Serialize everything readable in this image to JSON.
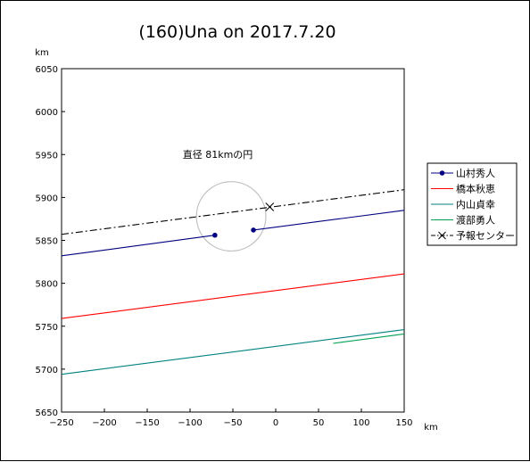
{
  "chart_data": {
    "type": "line",
    "title": "(160)Una on 2017.7.20",
    "xlabel": "km",
    "ylabel": "km",
    "xlim": [
      -250,
      150
    ],
    "ylim": [
      5650,
      6050
    ],
    "xticks": [
      -250,
      -200,
      -150,
      -100,
      -50,
      0,
      50,
      100,
      150
    ],
    "yticks": [
      5650,
      5700,
      5750,
      5800,
      5850,
      5900,
      5950,
      6000,
      6050
    ],
    "grid": false,
    "legend_position": "right",
    "annotation": "直径 81kmの円",
    "circle": {
      "cx": -52,
      "cy": 5878,
      "diameter": 81
    },
    "series": [
      {
        "name": "山村秀人",
        "color": "#000080",
        "style": "solid",
        "segments": [
          {
            "x": [
              -250,
              -71
            ],
            "y": [
              5832,
              5856
            ]
          },
          {
            "x": [
              -26,
              150
            ],
            "y": [
              5862,
              5885
            ]
          }
        ],
        "points": [
          {
            "x": -71,
            "y": 5856
          },
          {
            "x": -26,
            "y": 5862
          }
        ]
      },
      {
        "name": "橋本秋恵",
        "color": "#ff0000",
        "style": "solid",
        "segments": [
          {
            "x": [
              -250,
              150
            ],
            "y": [
              5759,
              5811
            ]
          }
        ],
        "points": []
      },
      {
        "name": "内山貞幸",
        "color": "#008080",
        "style": "solid",
        "segments": [
          {
            "x": [
              -250,
              150
            ],
            "y": [
              5694,
              5746
            ]
          }
        ],
        "points": []
      },
      {
        "name": "渡部勇人",
        "color": "#00a050",
        "style": "solid",
        "segments": [
          {
            "x": [
              67,
              150
            ],
            "y": [
              5730,
              5741
            ]
          }
        ],
        "points": []
      },
      {
        "name": "予報センター",
        "color": "#000000",
        "style": "dashdot",
        "segments": [
          {
            "x": [
              -250,
              150
            ],
            "y": [
              5857,
              5909
            ]
          }
        ],
        "points": [],
        "marker": {
          "x": -7,
          "y": 5889
        }
      }
    ]
  }
}
